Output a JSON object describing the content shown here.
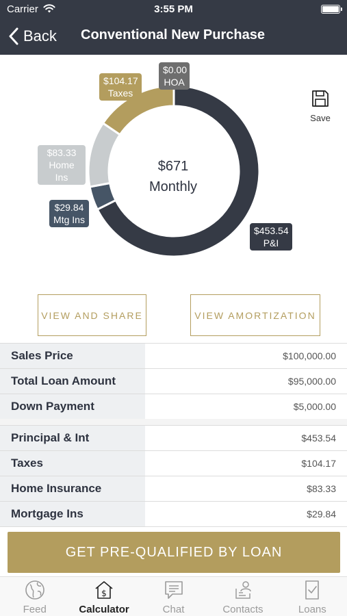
{
  "status_bar": {
    "carrier": "Carrier",
    "time": "3:55 PM"
  },
  "nav": {
    "back_label": "Back",
    "title": "Conventional New Purchase"
  },
  "save_label": "Save",
  "chart_data": {
    "type": "pie",
    "style": "donut",
    "center_amount": "$671",
    "center_label": "Monthly",
    "slices": [
      {
        "key": "pi",
        "label": "P&I",
        "value": 453.54,
        "display": "$453.54",
        "color": "#353a45"
      },
      {
        "key": "mtg",
        "label": "Mtg Ins",
        "value": 29.84,
        "display": "$29.84",
        "color": "#465566"
      },
      {
        "key": "home",
        "label": "Home Ins",
        "value": 83.33,
        "display": "$83.33",
        "color": "#c8ccce"
      },
      {
        "key": "tax",
        "label": "Taxes",
        "value": 104.17,
        "display": "$104.17",
        "color": "#b39d5e"
      },
      {
        "key": "hoa",
        "label": "HOA",
        "value": 0.0,
        "display": "$0.00",
        "color": "#6e6e6e"
      }
    ]
  },
  "buttons": {
    "view_share": "VIEW AND SHARE",
    "view_amortization": "VIEW AMORTIZATION",
    "cta": "GET PRE-QUALIFIED BY LOAN"
  },
  "loan_rows": [
    {
      "label": "Sales Price",
      "value": "$100,000.00"
    },
    {
      "label": "Total Loan Amount",
      "value": "$95,000.00"
    },
    {
      "label": "Down Payment",
      "value": "$5,000.00"
    }
  ],
  "payment_rows": [
    {
      "label": "Principal & Int",
      "value": "$453.54"
    },
    {
      "label": "Taxes",
      "value": "$104.17"
    },
    {
      "label": "Home Insurance",
      "value": "$83.33"
    },
    {
      "label": "Mortgage Ins",
      "value": "$29.84"
    }
  ],
  "tabs": [
    {
      "label": "Feed",
      "icon": "globe-icon",
      "active": false
    },
    {
      "label": "Calculator",
      "icon": "calculator-icon",
      "active": true
    },
    {
      "label": "Chat",
      "icon": "chat-icon",
      "active": false
    },
    {
      "label": "Contacts",
      "icon": "contacts-icon",
      "active": false
    },
    {
      "label": "Loans",
      "icon": "loans-icon",
      "active": false
    }
  ]
}
